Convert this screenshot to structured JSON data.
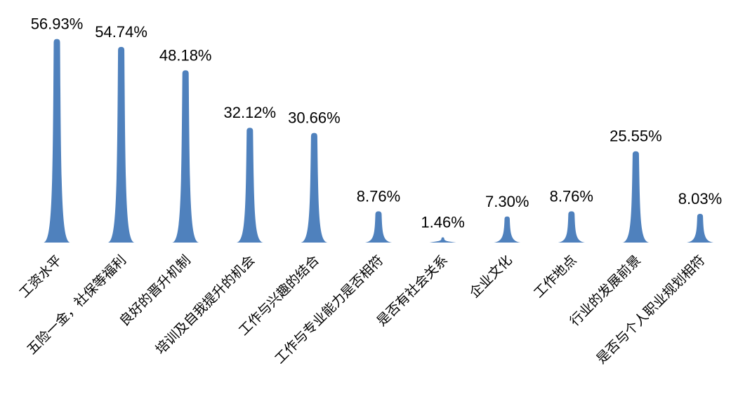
{
  "chart_data": {
    "type": "bar",
    "categories": [
      "工资水平",
      "五险一金，社保等福利",
      "良好的晋升机制",
      "培训及自我提升的机会",
      "工作与兴趣的结合",
      "工作与专业能力是否相符",
      "是否有社会关系",
      "企业文化",
      "工作地点",
      "行业的发展前景",
      "是否与个人职业规划相符"
    ],
    "values": [
      56.93,
      54.74,
      48.18,
      32.12,
      30.66,
      8.76,
      1.46,
      7.3,
      8.76,
      25.55,
      8.03
    ],
    "value_labels": [
      "56.93%",
      "54.74%",
      "48.18%",
      "32.12%",
      "30.66%",
      "8.76%",
      "1.46%",
      "7.30%",
      "8.76%",
      "25.55%",
      "8.03%"
    ],
    "title": "",
    "xlabel": "",
    "ylabel": "",
    "ylim": [
      0,
      60
    ],
    "grid": false,
    "bar_color": "#4f81bd"
  }
}
